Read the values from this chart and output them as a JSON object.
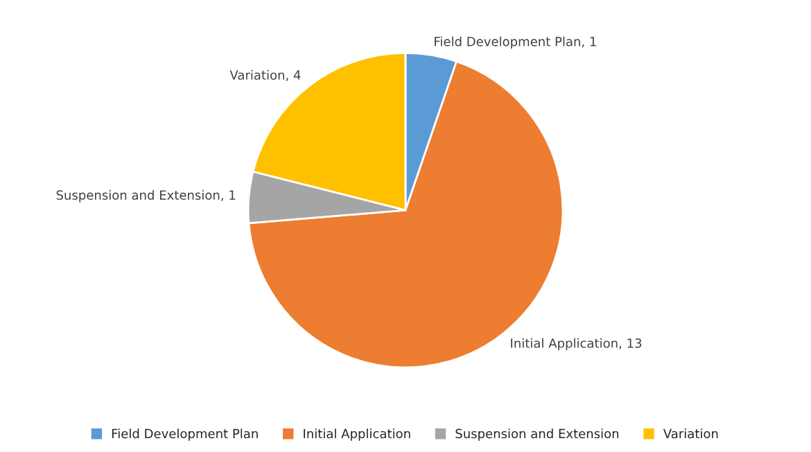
{
  "chart_data": {
    "type": "pie",
    "categories": [
      "Field Development Plan",
      "Initial Application",
      "Suspension and Extension",
      "Variation"
    ],
    "values": [
      1,
      13,
      1,
      4
    ],
    "colors": [
      "#5b9bd5",
      "#ed7d31",
      "#a5a5a5",
      "#ffc000"
    ],
    "value_labels": [
      "Field Development Plan, 1",
      "Initial Application, 13",
      "Suspension and Extension, 1",
      "Variation, 4"
    ],
    "legend": "bottom"
  }
}
